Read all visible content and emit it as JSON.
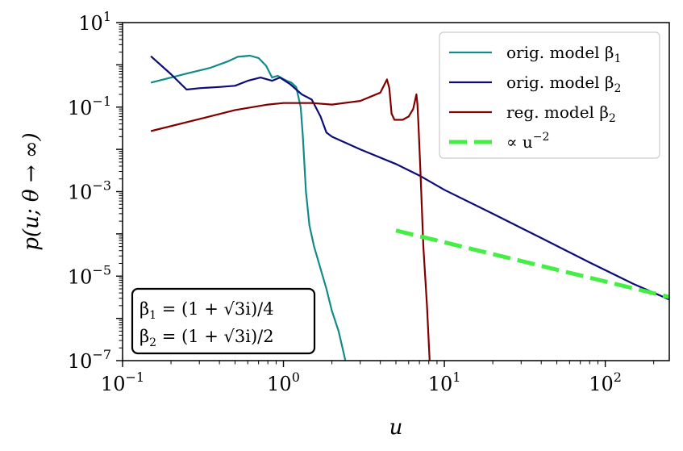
{
  "chart_data": {
    "type": "line",
    "xlabel": "u",
    "ylabel": "p(u; θ → ∞)",
    "xscale": "log",
    "yscale": "log",
    "xlim": [
      0.1,
      250
    ],
    "ylim": [
      1e-07,
      10
    ],
    "x_ticks": [
      {
        "base": "10",
        "exp": "−1",
        "value": 0.1
      },
      {
        "base": "10",
        "exp": "0",
        "value": 1
      },
      {
        "base": "10",
        "exp": "1",
        "value": 10
      },
      {
        "base": "10",
        "exp": "2",
        "value": 100
      }
    ],
    "y_ticks": [
      {
        "base": "10",
        "exp": "1",
        "value": 10
      },
      {
        "base": "10",
        "exp": "−1",
        "value": 0.1
      },
      {
        "base": "10",
        "exp": "−3",
        "value": 0.001
      },
      {
        "base": "10",
        "exp": "−5",
        "value": 1e-05
      },
      {
        "base": "10",
        "exp": "−7",
        "value": 1e-07
      }
    ],
    "legend_position": "top-right",
    "series": [
      {
        "name": "orig. model β1",
        "legend_main": "orig. model β",
        "legend_sub": "1",
        "color": "#138a8a",
        "dashed": false,
        "points": [
          [
            0.15,
            0.38
          ],
          [
            0.25,
            0.62
          ],
          [
            0.35,
            0.85
          ],
          [
            0.45,
            1.2
          ],
          [
            0.52,
            1.55
          ],
          [
            0.62,
            1.65
          ],
          [
            0.7,
            1.45
          ],
          [
            0.78,
            0.95
          ],
          [
            0.85,
            0.5
          ],
          [
            0.92,
            0.55
          ],
          [
            0.98,
            0.48
          ],
          [
            1.05,
            0.42
          ],
          [
            1.12,
            0.38
          ],
          [
            1.2,
            0.3
          ],
          [
            1.28,
            0.1
          ],
          [
            1.32,
            0.02
          ],
          [
            1.38,
            0.001
          ],
          [
            1.45,
            0.00016
          ],
          [
            1.55,
            5e-05
          ],
          [
            1.7,
            1.5e-05
          ],
          [
            1.85,
            5e-06
          ],
          [
            2.0,
            1.5e-06
          ],
          [
            2.2,
            5e-07
          ],
          [
            2.4,
            1.2e-07
          ],
          [
            2.44,
            9e-08
          ]
        ]
      },
      {
        "name": "orig. model β2",
        "legend_main": "orig. model β",
        "legend_sub": "2",
        "color": "#0c0c78",
        "dashed": false,
        "points": [
          [
            0.15,
            1.6
          ],
          [
            0.2,
            0.6
          ],
          [
            0.25,
            0.26
          ],
          [
            0.3,
            0.28
          ],
          [
            0.4,
            0.3
          ],
          [
            0.5,
            0.32
          ],
          [
            0.6,
            0.42
          ],
          [
            0.72,
            0.5
          ],
          [
            0.85,
            0.42
          ],
          [
            0.95,
            0.5
          ],
          [
            1.1,
            0.35
          ],
          [
            1.3,
            0.2
          ],
          [
            1.5,
            0.15
          ],
          [
            1.7,
            0.06
          ],
          [
            1.85,
            0.025
          ],
          [
            2.0,
            0.02
          ],
          [
            3,
            0.01
          ],
          [
            5,
            0.0045
          ],
          [
            7,
            0.0024
          ],
          [
            10,
            0.0011
          ],
          [
            20,
            0.0003
          ],
          [
            40,
            8e-05
          ],
          [
            80,
            2.1e-05
          ],
          [
            150,
            6.5e-06
          ],
          [
            250,
            2.8e-06
          ]
        ]
      },
      {
        "name": "reg. model β2",
        "legend_main": "reg. model β",
        "legend_sub": "2",
        "color": "#800000",
        "dashed": false,
        "points": [
          [
            0.15,
            0.027
          ],
          [
            0.3,
            0.052
          ],
          [
            0.5,
            0.085
          ],
          [
            0.8,
            0.115
          ],
          [
            1.0,
            0.125
          ],
          [
            1.5,
            0.125
          ],
          [
            2,
            0.115
          ],
          [
            3,
            0.14
          ],
          [
            4,
            0.22
          ],
          [
            4.4,
            0.45
          ],
          [
            4.55,
            0.28
          ],
          [
            4.7,
            0.07
          ],
          [
            4.9,
            0.05
          ],
          [
            5.5,
            0.05
          ],
          [
            6.0,
            0.06
          ],
          [
            6.4,
            0.09
          ],
          [
            6.7,
            0.2
          ],
          [
            6.8,
            0.12
          ],
          [
            6.9,
            0.04
          ],
          [
            7.1,
            0.003
          ],
          [
            7.4,
            5e-05
          ],
          [
            7.8,
            2e-06
          ],
          [
            8.1,
            1e-07
          ]
        ]
      },
      {
        "name": "∝ u−2",
        "legend_main": "∝ u",
        "legend_sup": "−2",
        "color": "#44ee44",
        "dashed": true,
        "points": [
          [
            5,
            0.00012
          ],
          [
            250,
            3.2e-06
          ]
        ]
      }
    ],
    "annotations": [
      {
        "lhs": "β",
        "sub": "1",
        "rhs": " = (1 + √3i)/4"
      },
      {
        "lhs": "β",
        "sub": "2",
        "rhs": " = (1 + √3i)/2"
      }
    ]
  }
}
